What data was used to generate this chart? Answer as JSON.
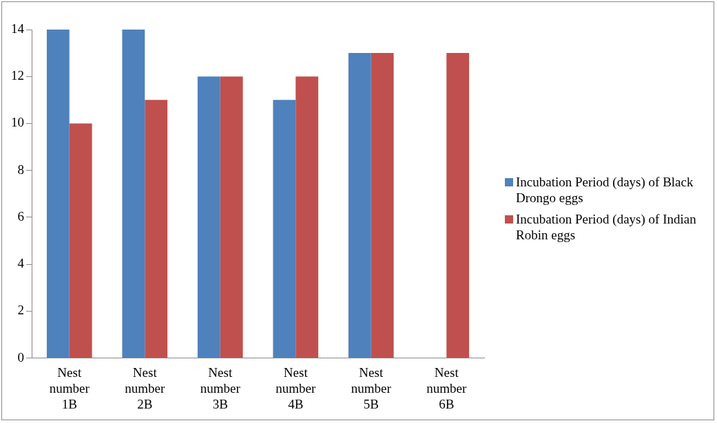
{
  "chart_data": {
    "type": "bar",
    "categories": [
      "Nest number 1B",
      "Nest number 2B",
      "Nest number 3B",
      "Nest number 4B",
      "Nest number 5B",
      "Nest number 6B"
    ],
    "series": [
      {
        "name": "Incubation Period (days) of Black Drongo eggs",
        "color": "#4f81bd",
        "values": [
          14,
          14,
          12,
          11,
          13,
          0
        ]
      },
      {
        "name": "Incubation Period (days) of Indian Robin eggs",
        "color": "#c0504d",
        "values": [
          10,
          11,
          12,
          12,
          13,
          13
        ]
      }
    ],
    "ylim": [
      0,
      14
    ],
    "yticks": [
      0,
      2,
      4,
      6,
      8,
      10,
      12,
      14
    ],
    "grid": false,
    "legend": "right"
  }
}
